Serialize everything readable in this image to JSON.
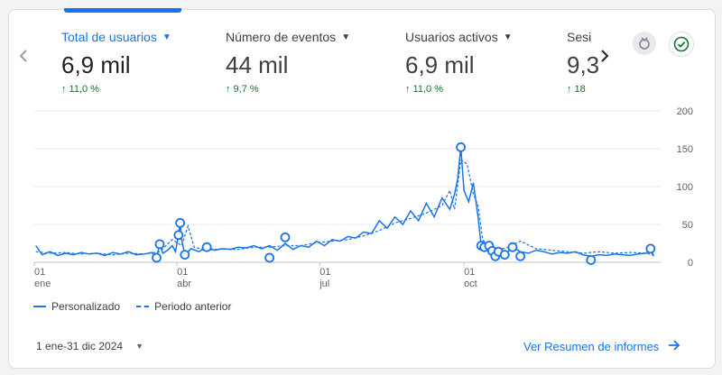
{
  "metrics": [
    {
      "label": "Total de usuarios",
      "value": "6,9 mil",
      "change": "↑ 11,0 %"
    },
    {
      "label": "Número de eventos",
      "value": "44 mil",
      "change": "↑ 9,7 %"
    },
    {
      "label": "Usuarios activos",
      "value": "6,9 mil",
      "change": "↑ 11,0 %"
    },
    {
      "label": "Sesi",
      "value": "9,3",
      "change": "↑ 18"
    }
  ],
  "colors": {
    "accent": "#1a73e8",
    "positive": "#137333"
  },
  "icons": {
    "prev": "chevron-left-icon",
    "next": "chevron-right-icon",
    "insights": "insights-icon",
    "check": "check-circle-icon",
    "caret": "caret-down-icon",
    "arrow": "arrow-right-icon"
  },
  "chart_data": {
    "type": "line",
    "ylim": [
      0,
      200
    ],
    "yticks": [
      "200",
      "150",
      "100",
      "50",
      "0"
    ],
    "xticks": [
      {
        "top": "01",
        "bottom": "ene"
      },
      {
        "top": "01",
        "bottom": "abr"
      },
      {
        "top": "01",
        "bottom": "jul"
      },
      {
        "top": "01",
        "bottom": "oct"
      }
    ],
    "series": [
      {
        "name": "Personalizado",
        "style": "solid",
        "points": [
          [
            1,
            22
          ],
          [
            5,
            10
          ],
          [
            10,
            14
          ],
          [
            15,
            9
          ],
          [
            20,
            12
          ],
          [
            25,
            10
          ],
          [
            30,
            13
          ],
          [
            35,
            11
          ],
          [
            40,
            12
          ],
          [
            45,
            9
          ],
          [
            50,
            13
          ],
          [
            55,
            11
          ],
          [
            60,
            14
          ],
          [
            65,
            10
          ],
          [
            70,
            11
          ],
          [
            75,
            13
          ],
          [
            78,
            6
          ],
          [
            80,
            24
          ],
          [
            82,
            12
          ],
          [
            85,
            16
          ],
          [
            88,
            22
          ],
          [
            90,
            14
          ],
          [
            92,
            36
          ],
          [
            93,
            52
          ],
          [
            94,
            30
          ],
          [
            96,
            10
          ],
          [
            100,
            18
          ],
          [
            105,
            14
          ],
          [
            110,
            20
          ],
          [
            115,
            16
          ],
          [
            120,
            18
          ],
          [
            125,
            17
          ],
          [
            130,
            20
          ],
          [
            135,
            19
          ],
          [
            140,
            22
          ],
          [
            145,
            18
          ],
          [
            150,
            22
          ],
          [
            155,
            16
          ],
          [
            160,
            25
          ],
          [
            165,
            17
          ],
          [
            170,
            22
          ],
          [
            175,
            20
          ],
          [
            180,
            28
          ],
          [
            185,
            22
          ],
          [
            190,
            30
          ],
          [
            195,
            28
          ],
          [
            200,
            34
          ],
          [
            205,
            32
          ],
          [
            210,
            40
          ],
          [
            215,
            38
          ],
          [
            220,
            55
          ],
          [
            225,
            45
          ],
          [
            230,
            60
          ],
          [
            235,
            50
          ],
          [
            240,
            68
          ],
          [
            245,
            55
          ],
          [
            250,
            78
          ],
          [
            255,
            60
          ],
          [
            260,
            85
          ],
          [
            265,
            70
          ],
          [
            268,
            90
          ],
          [
            270,
            110
          ],
          [
            272,
            152
          ],
          [
            274,
            95
          ],
          [
            277,
            80
          ],
          [
            280,
            105
          ],
          [
            283,
            60
          ],
          [
            285,
            22
          ],
          [
            287,
            20
          ],
          [
            290,
            22
          ],
          [
            292,
            15
          ],
          [
            294,
            8
          ],
          [
            296,
            14
          ],
          [
            300,
            10
          ],
          [
            305,
            20
          ],
          [
            310,
            14
          ],
          [
            315,
            12
          ],
          [
            320,
            16
          ],
          [
            325,
            14
          ],
          [
            330,
            11
          ],
          [
            335,
            13
          ],
          [
            340,
            12
          ],
          [
            345,
            14
          ],
          [
            350,
            10
          ],
          [
            355,
            8
          ],
          [
            360,
            10
          ],
          [
            365,
            9
          ],
          [
            370,
            11
          ],
          [
            375,
            10
          ],
          [
            380,
            9
          ],
          [
            385,
            11
          ],
          [
            390,
            12
          ],
          [
            393,
            18
          ],
          [
            395,
            8
          ]
        ]
      },
      {
        "name": "Periodo anterior",
        "style": "dashed",
        "points": [
          [
            1,
            14
          ],
          [
            10,
            12
          ],
          [
            20,
            13
          ],
          [
            30,
            11
          ],
          [
            40,
            12
          ],
          [
            50,
            10
          ],
          [
            60,
            12
          ],
          [
            70,
            11
          ],
          [
            80,
            14
          ],
          [
            88,
            30
          ],
          [
            94,
            22
          ],
          [
            98,
            48
          ],
          [
            102,
            20
          ],
          [
            110,
            16
          ],
          [
            120,
            18
          ],
          [
            130,
            17
          ],
          [
            140,
            20
          ],
          [
            150,
            20
          ],
          [
            160,
            22
          ],
          [
            170,
            22
          ],
          [
            180,
            26
          ],
          [
            190,
            28
          ],
          [
            200,
            30
          ],
          [
            210,
            35
          ],
          [
            220,
            42
          ],
          [
            230,
            52
          ],
          [
            240,
            58
          ],
          [
            250,
            65
          ],
          [
            260,
            75
          ],
          [
            265,
            95
          ],
          [
            268,
            70
          ],
          [
            272,
            135
          ],
          [
            276,
            130
          ],
          [
            280,
            90
          ],
          [
            283,
            75
          ],
          [
            286,
            30
          ],
          [
            290,
            20
          ],
          [
            300,
            18
          ],
          [
            310,
            28
          ],
          [
            320,
            18
          ],
          [
            330,
            16
          ],
          [
            340,
            14
          ],
          [
            350,
            12
          ],
          [
            360,
            14
          ],
          [
            370,
            12
          ],
          [
            380,
            13
          ],
          [
            390,
            12
          ],
          [
            395,
            10
          ]
        ]
      }
    ],
    "markers": [
      [
        78,
        6
      ],
      [
        80,
        24
      ],
      [
        92,
        36
      ],
      [
        93,
        52
      ],
      [
        96,
        10
      ],
      [
        110,
        20
      ],
      [
        150,
        6
      ],
      [
        160,
        33
      ],
      [
        272,
        152
      ],
      [
        285,
        22
      ],
      [
        287,
        20
      ],
      [
        290,
        22
      ],
      [
        292,
        15
      ],
      [
        294,
        8
      ],
      [
        296,
        14
      ],
      [
        300,
        10
      ],
      [
        305,
        20
      ],
      [
        310,
        8
      ],
      [
        355,
        3
      ],
      [
        393,
        18
      ]
    ],
    "legend": [
      "Personalizado",
      "Periodo anterior"
    ]
  },
  "footer": {
    "date_range": "1 ene-31 dic 2024",
    "link": "Ver Resumen de informes"
  }
}
